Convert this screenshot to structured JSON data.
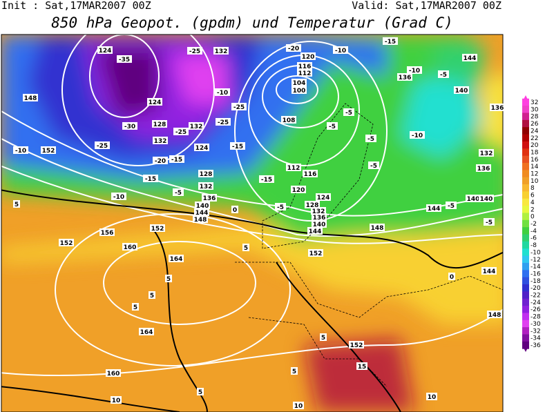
{
  "header": {
    "init": "Init : Sat,17MAR2007 00Z",
    "valid": "Valid: Sat,17MAR2007 00Z",
    "title": "850 hPa Geopot. (gpdm) und Temperatur (Grad C)"
  },
  "colorbar": {
    "ticks": [
      32,
      30,
      28,
      26,
      24,
      22,
      20,
      18,
      16,
      14,
      12,
      10,
      8,
      6,
      4,
      2,
      0,
      -2,
      -4,
      -6,
      -8,
      -10,
      -12,
      -14,
      -16,
      -18,
      -20,
      -22,
      -24,
      -26,
      -28,
      -30,
      -32,
      -34,
      -36
    ],
    "colors": [
      "#ff40e0",
      "#f040c8",
      "#d02090",
      "#b01040",
      "#900000",
      "#b00000",
      "#d01010",
      "#e03010",
      "#e85020",
      "#f07020",
      "#f08c20",
      "#f0a028",
      "#f8b830",
      "#f8d030",
      "#f8e840",
      "#e8f840",
      "#b0f040",
      "#70e040",
      "#40d040",
      "#30d070",
      "#20d8a0",
      "#20e0d0",
      "#30c8f0",
      "#30a0f0",
      "#3070f0",
      "#3050e0",
      "#3030d0",
      "#5020c8",
      "#7020d0",
      "#9020e0",
      "#c030f0",
      "#e040f0",
      "#b020c0",
      "#8010a0",
      "#600080"
    ]
  },
  "contour_labels": [
    124,
    -35,
    -25,
    132,
    -20,
    120,
    -10,
    -15,
    144,
    -10,
    -5,
    136,
    140,
    136,
    148,
    124,
    -30,
    128,
    -25,
    132,
    -25,
    -25,
    -10,
    116,
    112,
    104,
    100,
    108,
    -5,
    -5,
    -5,
    -10,
    132,
    -25,
    152,
    -10,
    132,
    124,
    -15,
    -20,
    -15,
    128,
    -15,
    -15,
    112,
    116,
    -5,
    136,
    132,
    -5,
    136,
    -10,
    5,
    140,
    144,
    148,
    0,
    -5,
    120,
    124,
    128,
    132,
    136,
    140,
    144,
    144,
    -5,
    140,
    140,
    -5,
    148,
    152,
    156,
    152,
    160,
    5,
    152,
    164,
    5,
    5,
    5,
    0,
    144,
    148,
    164,
    5,
    152,
    15,
    5,
    160,
    5,
    10,
    10,
    10
  ]
}
